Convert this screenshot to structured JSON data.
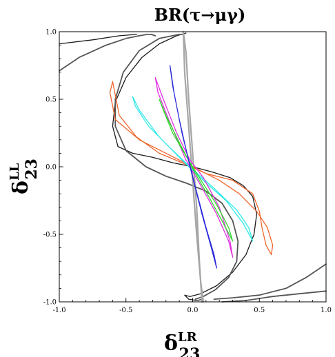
{
  "chart_data": {
    "type": "line",
    "title": "BR(τ→μγ)",
    "xlabel": {
      "main": "δ",
      "sup": "LR",
      "sub": "23"
    },
    "ylabel": {
      "main": "δ",
      "sup": "LL",
      "sub": "23"
    },
    "xlim": [
      -1.0,
      1.0
    ],
    "ylim": [
      -1.0,
      1.0
    ],
    "xticks": [
      "-1.0",
      "-0.5",
      "0.0",
      "0.5",
      "1.0"
    ],
    "yticks": [
      "1.0",
      "0.5",
      "0.0",
      "-0.5",
      "-1.0"
    ],
    "grid": false,
    "colors": {
      "black": "#1a1a1a",
      "dark_gray": "#555555",
      "light_gray": "#a6a6a6",
      "orange": "#f0642a",
      "cyan": "#30e8e8",
      "magenta": "#e030e0",
      "green": "#30d830",
      "blue": "#2a2ad8"
    },
    "series": [
      {
        "color": "black",
        "x": [
          -0.05,
          -0.12,
          -0.25,
          -0.38,
          -0.5,
          -0.58,
          -0.6,
          -0.56,
          -0.45,
          -0.3,
          -0.15,
          0.0,
          0.15,
          0.28,
          0.38,
          0.45,
          0.48,
          0.46,
          0.4,
          0.3,
          0.18,
          0.06,
          -0.02,
          -0.06,
          -0.03,
          0.03,
          0.08
        ],
        "y": [
          0.99,
          0.97,
          0.91,
          0.81,
          0.66,
          0.48,
          0.3,
          0.15,
          0.1,
          0.07,
          0.03,
          0.0,
          -0.04,
          -0.08,
          -0.14,
          -0.22,
          -0.35,
          -0.5,
          -0.65,
          -0.78,
          -0.88,
          -0.94,
          -0.96,
          -0.95,
          -0.98,
          -0.99,
          -0.98
        ]
      },
      {
        "color": "black",
        "x": [
          -1.0,
          -0.75,
          -0.55,
          -0.42
        ],
        "y": [
          0.91,
          0.94,
          0.97,
          0.98
        ]
      },
      {
        "color": "dark_gray",
        "x": [
          -1.0,
          -0.85,
          -0.65,
          -0.5,
          -0.4,
          -0.34,
          -0.31,
          -0.28
        ],
        "y": [
          0.71,
          0.81,
          0.9,
          0.95,
          0.97,
          0.98,
          0.98,
          0.97
        ]
      },
      {
        "color": "dark_gray",
        "x": [
          -0.1,
          -0.25,
          -0.4,
          -0.52,
          -0.58,
          -0.58,
          -0.5,
          -0.35,
          -0.2,
          -0.05,
          0.1,
          0.22,
          0.3,
          0.34,
          0.33,
          0.27,
          0.17,
          0.08,
          0.02
        ],
        "y": [
          0.98,
          0.95,
          0.86,
          0.7,
          0.5,
          0.3,
          0.12,
          0.0,
          -0.07,
          -0.12,
          -0.18,
          -0.27,
          -0.4,
          -0.55,
          -0.7,
          -0.82,
          -0.91,
          -0.96,
          -0.98
        ]
      },
      {
        "color": "dark_gray",
        "x": [
          0.22,
          0.4,
          0.6,
          0.8,
          1.0
        ],
        "y": [
          -1.0,
          -0.99,
          -0.96,
          -0.94,
          -0.92
        ]
      },
      {
        "color": "dark_gray",
        "x": [
          0.16,
          0.3,
          0.5,
          0.7,
          0.85,
          1.0
        ],
        "y": [
          -0.98,
          -0.97,
          -0.95,
          -0.9,
          -0.82,
          -0.72
        ]
      },
      {
        "color": "light_gray",
        "x": [
          -0.07,
          -0.06,
          -0.03,
          0.0,
          0.03,
          0.06,
          0.08,
          0.07,
          0.05,
          0.03,
          0.0,
          -0.03,
          -0.05,
          -0.07
        ],
        "y": [
          1.0,
          0.7,
          0.3,
          -0.1,
          -0.5,
          -0.85,
          -1.0,
          -1.0,
          -0.7,
          -0.3,
          0.1,
          0.5,
          0.85,
          1.0
        ]
      },
      {
        "color": "orange",
        "x": [
          -0.6,
          -0.62,
          -0.58,
          -0.4,
          -0.2,
          0.0,
          0.2,
          0.35,
          0.48,
          0.56,
          0.6,
          0.59,
          0.55,
          0.52,
          0.5,
          0.45,
          0.3,
          0.1,
          -0.08,
          -0.25,
          -0.42,
          -0.55,
          -0.6
        ],
        "y": [
          0.63,
          0.55,
          0.35,
          0.2,
          0.1,
          0.0,
          -0.1,
          -0.2,
          -0.33,
          -0.45,
          -0.58,
          -0.65,
          -0.58,
          -0.45,
          -0.33,
          -0.2,
          -0.1,
          -0.05,
          0.03,
          0.1,
          0.22,
          0.38,
          0.63
        ]
      },
      {
        "color": "cyan",
        "x": [
          -0.45,
          -0.4,
          -0.25,
          -0.05,
          0.1,
          0.25,
          0.38,
          0.45,
          0.42,
          0.33,
          0.15,
          -0.02,
          -0.18,
          -0.33,
          -0.43,
          -0.45
        ],
        "y": [
          0.52,
          0.42,
          0.22,
          0.02,
          -0.12,
          -0.25,
          -0.42,
          -0.55,
          -0.45,
          -0.32,
          -0.15,
          0.0,
          0.15,
          0.3,
          0.45,
          0.52
        ]
      },
      {
        "color": "magenta",
        "x": [
          -0.28,
          -0.26,
          -0.18,
          -0.05,
          0.05,
          0.18,
          0.27,
          0.3,
          0.28,
          0.2,
          0.08,
          -0.02,
          -0.12,
          -0.22,
          -0.28
        ],
        "y": [
          0.66,
          0.55,
          0.35,
          0.05,
          -0.12,
          -0.35,
          -0.55,
          -0.67,
          -0.55,
          -0.3,
          -0.08,
          0.05,
          0.25,
          0.5,
          0.66
        ]
      },
      {
        "color": "green",
        "x": [
          -0.25,
          -0.2,
          -0.1,
          0.02,
          0.12,
          0.22,
          0.3,
          0.27,
          0.18,
          0.05,
          -0.05,
          -0.15,
          -0.22,
          -0.25
        ],
        "y": [
          0.5,
          0.38,
          0.18,
          -0.05,
          -0.22,
          -0.4,
          -0.55,
          -0.45,
          -0.28,
          -0.08,
          0.08,
          0.25,
          0.42,
          0.5
        ]
      },
      {
        "color": "blue",
        "x": [
          -0.17,
          -0.14,
          -0.08,
          0.02,
          0.1,
          0.16,
          0.18,
          0.14,
          0.07,
          -0.02,
          -0.1,
          -0.15,
          -0.17
        ],
        "y": [
          0.75,
          0.55,
          0.25,
          -0.15,
          -0.45,
          -0.65,
          -0.75,
          -0.6,
          -0.35,
          0.0,
          0.35,
          0.6,
          0.75
        ]
      }
    ]
  }
}
